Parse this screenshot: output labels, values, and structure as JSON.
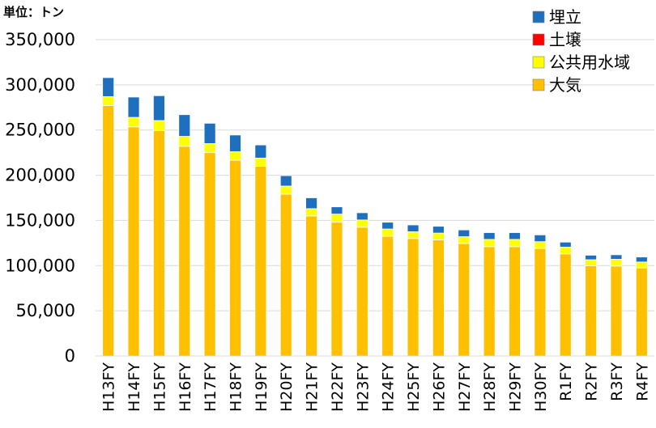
{
  "chart_data": {
    "type": "bar",
    "stacked": true,
    "unit_label": "単位：トン",
    "categories": [
      "H13FY",
      "H14FY",
      "H15FY",
      "H16FY",
      "H17FY",
      "H18FY",
      "H19FY",
      "H20FY",
      "H21FY",
      "H22FY",
      "H23FY",
      "H24FY",
      "H25FY",
      "H26FY",
      "H27FY",
      "H28FY",
      "H29FY",
      "H30FY",
      "R1FY",
      "R2FY",
      "R3FY",
      "R4FY"
    ],
    "series": [
      {
        "name": "大気",
        "color": "#FFC000",
        "values": [
          277000,
          253500,
          249500,
          232000,
          225000,
          216500,
          210000,
          179000,
          155000,
          148000,
          142500,
          132500,
          130000,
          128500,
          124500,
          121000,
          121000,
          119000,
          113000,
          100000,
          99500,
          97500
        ]
      },
      {
        "name": "公共用水域",
        "color": "#FFFF00",
        "values": [
          10000,
          10500,
          11000,
          11000,
          10000,
          9500,
          9000,
          9000,
          8000,
          9000,
          8000,
          8000,
          7500,
          7500,
          7500,
          8000,
          8000,
          7500,
          7500,
          6500,
          7500,
          6500
        ]
      },
      {
        "name": "土壌",
        "color": "#FF0000",
        "values": [
          0,
          0,
          0,
          0,
          0,
          0,
          0,
          0,
          0,
          0,
          0,
          0,
          0,
          0,
          0,
          0,
          0,
          0,
          0,
          0,
          0,
          0
        ]
      },
      {
        "name": "埋立",
        "color": "#1F6FBF",
        "values": [
          21000,
          22500,
          27500,
          24000,
          22500,
          18500,
          14500,
          11500,
          12000,
          8000,
          8000,
          7500,
          7500,
          7500,
          7500,
          7500,
          7500,
          7500,
          5500,
          5000,
          5000,
          5500
        ]
      }
    ],
    "ylim": [
      0,
      350000
    ],
    "yticks": [
      0,
      50000,
      100000,
      150000,
      200000,
      250000,
      300000,
      350000
    ],
    "ytick_labels": [
      "0",
      "50,000",
      "100,000",
      "150,000",
      "200,000",
      "250,000",
      "300,000",
      "350,000"
    ],
    "legend_order": [
      "埋立",
      "土壌",
      "公共用水域",
      "大気"
    ],
    "legend_position": "top-right",
    "grid": true,
    "xlabel": "",
    "ylabel": ""
  }
}
